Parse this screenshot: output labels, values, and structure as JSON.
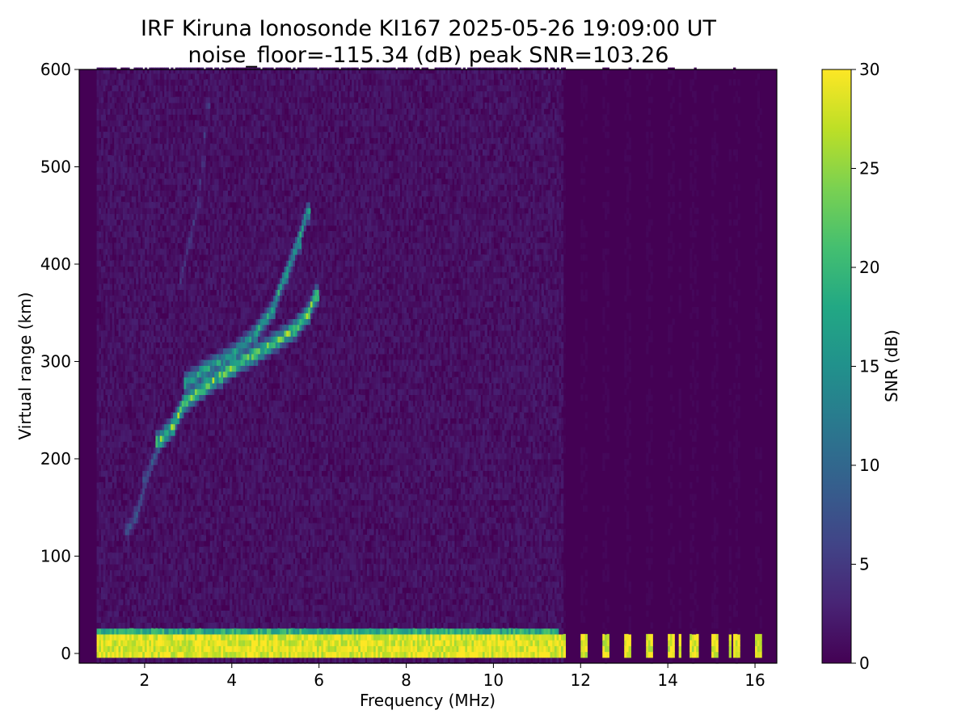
{
  "chart_data": {
    "type": "heatmap",
    "title": "IRF Kiruna Ionosonde KI167 2025-05-26 19:09:00  UT",
    "subtitle": "noise_floor=-115.34 (dB) peak SNR=103.26",
    "xlabel": "Frequency (MHz)",
    "ylabel": "Virtual range (km)",
    "colorbar_label": "SNR (dB)",
    "xlim": [
      0.5,
      16.5
    ],
    "ylim": [
      -10,
      600
    ],
    "clim": [
      0,
      30
    ],
    "x_ticks": [
      2,
      4,
      6,
      8,
      10,
      12,
      14,
      16
    ],
    "y_ticks": [
      0,
      100,
      200,
      300,
      400,
      500,
      600
    ],
    "colorbar_ticks": [
      0,
      5,
      10,
      15,
      20,
      25,
      30
    ],
    "colormap": "viridis",
    "data_freq_range_mhz": [
      0.9,
      16.4
    ],
    "ground_echo": {
      "range_km": [
        -5,
        15
      ],
      "freq_mhz": [
        0.9,
        16.2
      ],
      "snr_db": 30
    },
    "traces": [
      {
        "name": "E/F1 low trace",
        "points": [
          [
            1.6,
            125
          ],
          [
            1.8,
            140
          ],
          [
            2.0,
            175
          ],
          [
            2.2,
            200
          ]
        ],
        "snr_db": 8
      },
      {
        "name": "F trace lower",
        "points": [
          [
            2.3,
            215
          ],
          [
            2.6,
            230
          ],
          [
            2.9,
            255
          ],
          [
            3.3,
            270
          ],
          [
            3.7,
            282
          ],
          [
            4.0,
            292
          ],
          [
            4.5,
            305
          ],
          [
            5.0,
            318
          ],
          [
            5.4,
            330
          ],
          [
            5.7,
            345
          ],
          [
            5.9,
            365
          ]
        ],
        "snr_db": 24
      },
      {
        "name": "F trace upper",
        "points": [
          [
            2.9,
            275
          ],
          [
            3.4,
            290
          ],
          [
            4.0,
            305
          ],
          [
            4.5,
            325
          ],
          [
            4.9,
            350
          ],
          [
            5.2,
            385
          ],
          [
            5.5,
            420
          ],
          [
            5.7,
            450
          ]
        ],
        "snr_db": 18
      },
      {
        "name": "weak upper echo",
        "points": [
          [
            2.8,
            380
          ],
          [
            3.0,
            420
          ],
          [
            3.2,
            460
          ],
          [
            3.3,
            500
          ],
          [
            3.4,
            560
          ]
        ],
        "snr_db": 5
      }
    ],
    "colors": {
      "viridis_low": "#440154",
      "viridis_high": "#fde725"
    }
  }
}
